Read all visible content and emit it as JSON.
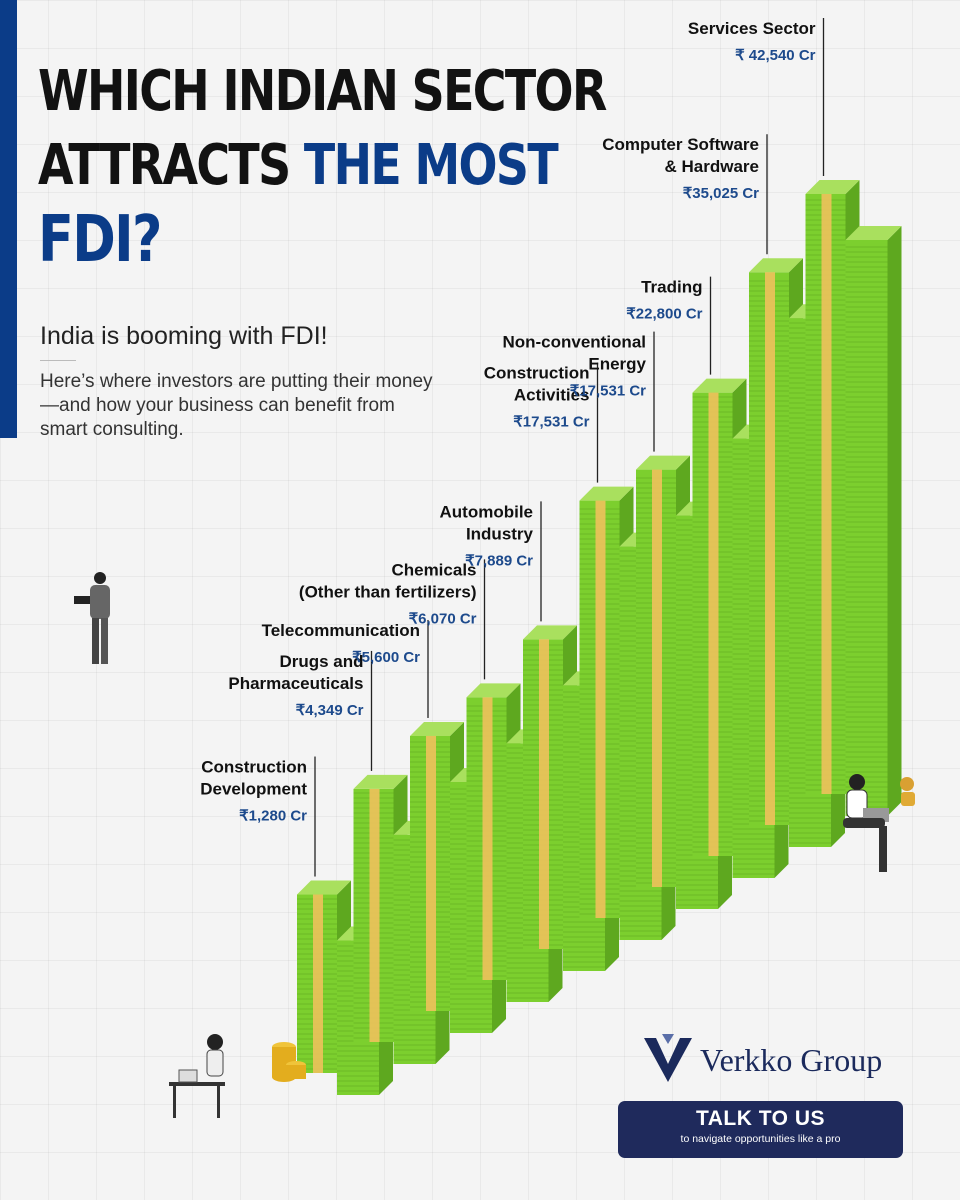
{
  "colors": {
    "accent": "#0b3c88",
    "dark": "#121212",
    "money_green": "#7ccf2e",
    "money_dark": "#5ea81f",
    "money_light": "#a9e05e",
    "band": "#e9c25a",
    "value_text": "#1d4a8c",
    "cta_bg": "#1f2a5c"
  },
  "header": {
    "title_line1": "WHICH INDIAN SECTOR",
    "title_line2_dark": "ATTRACTS ",
    "title_line2_accent": "THE MOST",
    "title_line3": "FDI?",
    "subheading": "India is booming with FDI!",
    "description": "Here’s where investors are putting their money—and how your business can benefit from smart consulting."
  },
  "chart_data": {
    "type": "bar",
    "unit": "₹ Cr",
    "categories": [
      "Construction Development",
      "Drugs and Pharmaceuticals",
      "Telecommunication",
      "Chemicals (Other than fertilizers)",
      "Automobile Industry",
      "Construction Activities",
      "Non-conventional Energy",
      "Trading",
      "Computer Software & Hardware",
      "Services Sector"
    ],
    "values": [
      1280,
      4349,
      5600,
      6070,
      7889,
      17531,
      17531,
      22800,
      35025,
      42540
    ],
    "labels": [
      {
        "name_lines": [
          "Construction",
          "Development"
        ],
        "value": "₹1,280 Cr"
      },
      {
        "name_lines": [
          "Drugs and",
          "Pharmaceuticals"
        ],
        "value": "₹4,349 Cr"
      },
      {
        "name_lines": [
          "Telecommunication"
        ],
        "value": "₹5,600 Cr"
      },
      {
        "name_lines": [
          "Chemicals",
          "(Other than fertilizers)"
        ],
        "value": "₹6,070 Cr"
      },
      {
        "name_lines": [
          "Automobile",
          "Industry"
        ],
        "value": "₹7,889 Cr"
      },
      {
        "name_lines": [
          "Construction",
          "Activities"
        ],
        "value": "₹17,531 Cr"
      },
      {
        "name_lines": [
          "Non-conventional",
          "Energy"
        ],
        "value": "₹17,531 Cr"
      },
      {
        "name_lines": [
          "Trading"
        ],
        "value": "₹22,800 Cr"
      },
      {
        "name_lines": [
          "Computer Software",
          "& Hardware"
        ],
        "value": "₹35,025 Cr"
      },
      {
        "name_lines": [
          "Services Sector"
        ],
        "value": "₹ 42,540 Cr"
      }
    ]
  },
  "brand": {
    "name": "Verkko Group",
    "logo_icon": "shield-v-logo"
  },
  "cta": {
    "label": "TALK TO US",
    "sublabel": "to navigate opportunities like a pro"
  },
  "icons": {
    "figure_standing": "man-with-laptop-icon",
    "figure_sitting": "man-sitting-laptop-icon",
    "figure_desk": "woman-at-desk-icon",
    "coins": "gold-coins-icon"
  }
}
